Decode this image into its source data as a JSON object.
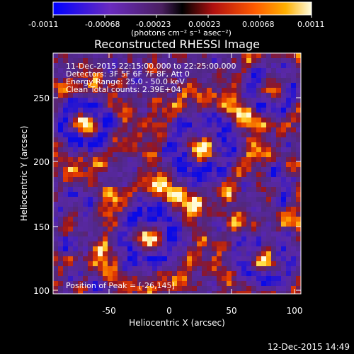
{
  "plot": {
    "title": "Reconstructed RHESSI Image",
    "timestamp": "12-Dec-2015 14:49",
    "position_of_peak": "Position of Peak = [-26,145]",
    "info_lines": [
      "11-Dec-2015 22:15:00.000 to 22:25:00.000",
      "Detectors: 3F 5F 6F 7F 8F, Att 0",
      "Energy Range: 25.0 - 50.0 keV",
      "Clean     Total counts: 2.39E+04"
    ]
  },
  "colorbar": {
    "ticks": [
      "-0.0011",
      "-0.00068",
      "-0.00023",
      "0.00023",
      "0.00068",
      "0.0011"
    ],
    "unit_label": "(photons cm⁻² s⁻¹ asec⁻²)",
    "colors": [
      "#0000ff",
      "#6a2bbf",
      "#5a2a7a",
      "#000000",
      "#b01010",
      "#ff5a00",
      "#ffb000",
      "#fffde0"
    ]
  },
  "x_axis": {
    "label": "Heliocentric X (arcsec)",
    "ticks": [
      "-50",
      "0",
      "50",
      "100"
    ],
    "range": [
      -90,
      100
    ]
  },
  "y_axis": {
    "label": "Heliocentric Y (arcsec)",
    "ticks": [
      "100",
      "150",
      "200",
      "250"
    ],
    "range": [
      95,
      280
    ]
  }
}
